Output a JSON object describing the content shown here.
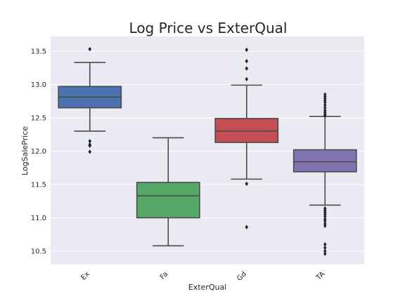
{
  "chart_data": {
    "type": "box",
    "title": "Log Price vs ExterQual",
    "xlabel": "ExterQual",
    "ylabel": "LogSalePrice",
    "ylim": [
      10.3,
      13.72
    ],
    "yticks": [
      "10.5",
      "11.0",
      "11.5",
      "12.0",
      "12.5",
      "13.0",
      "13.5"
    ],
    "categories": [
      "Ex",
      "Fa",
      "Gd",
      "TA"
    ],
    "grid": true,
    "boxes": [
      {
        "category": "Ex",
        "color": "#4c72b0",
        "whisker_low": 12.3,
        "q1": 12.65,
        "median": 12.81,
        "q3": 12.97,
        "whisker_high": 13.33,
        "outliers": [
          13.53,
          12.15,
          12.1,
          12.08,
          11.99
        ]
      },
      {
        "category": "Fa",
        "color": "#55a868",
        "whisker_low": 10.58,
        "q1": 11.0,
        "median": 11.33,
        "q3": 11.53,
        "whisker_high": 12.2,
        "outliers": []
      },
      {
        "category": "Gd",
        "color": "#c44e52",
        "whisker_low": 11.58,
        "q1": 12.13,
        "median": 12.3,
        "q3": 12.49,
        "whisker_high": 12.99,
        "outliers": [
          13.52,
          13.35,
          13.24,
          13.08,
          11.51,
          10.86
        ]
      },
      {
        "category": "TA",
        "color": "#8172b2",
        "whisker_low": 11.19,
        "q1": 11.69,
        "median": 11.84,
        "q3": 12.02,
        "whisker_high": 12.52,
        "outliers": [
          12.85,
          12.82,
          12.79,
          12.76,
          12.73,
          12.69,
          12.65,
          12.61,
          12.58,
          12.55,
          12.53,
          11.14,
          11.11,
          11.08,
          11.05,
          11.02,
          10.98,
          10.95,
          10.91,
          10.88,
          10.6,
          10.55,
          10.5,
          10.46
        ]
      }
    ]
  }
}
